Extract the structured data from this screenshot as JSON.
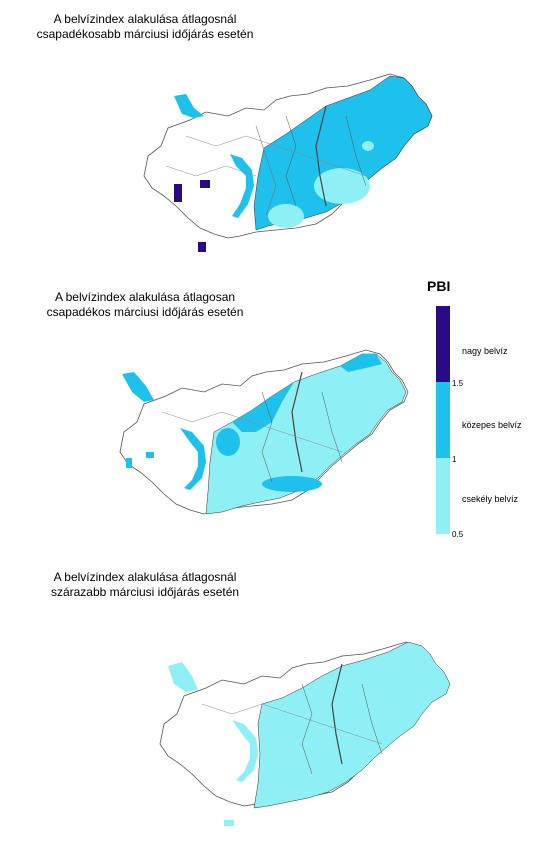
{
  "maps": [
    {
      "title_line1": "A belvízindex alakulása átlagosnál",
      "title_line2": "csapadékosabb márciusi időjárás esetén"
    },
    {
      "title_line1": "A belvízindex alakulása átlagosan",
      "title_line2": "csapadékos márciusi időjárás esetén"
    },
    {
      "title_line1": "A belvízindex alakulása átlagosnál",
      "title_line2": "szárazabb márciusi időjárás esetén"
    }
  ],
  "legend": {
    "title": "PBI",
    "ticks": [
      "1.5",
      "1",
      "0.5"
    ],
    "classes": [
      {
        "label": "nagy belvíz",
        "color": "#2b0a86"
      },
      {
        "label": "közepes belvíz",
        "color": "#1ec0ec"
      },
      {
        "label": "csekély belvíz",
        "color": "#8ef0f5"
      }
    ]
  }
}
